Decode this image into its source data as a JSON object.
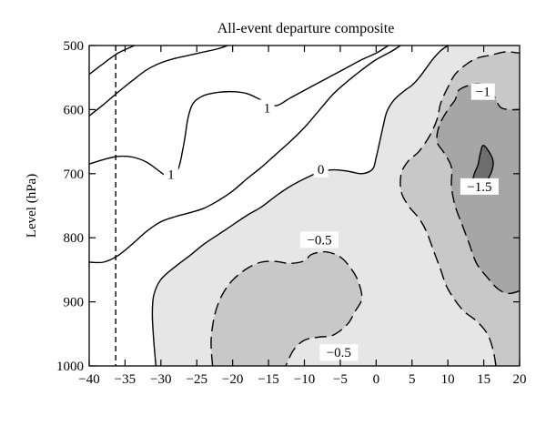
{
  "chart_data": {
    "type": "contour",
    "title": "All-event departure composite",
    "xlabel": "",
    "ylabel": "Level (hPa)",
    "xlim": [
      -40,
      20
    ],
    "ylim": [
      1000,
      500
    ],
    "y_axis_inverted": true,
    "x_ticks": [
      -40,
      -35,
      -30,
      -25,
      -20,
      -15,
      -10,
      -5,
      0,
      5,
      10,
      15,
      20
    ],
    "x_tick_labels": [
      "−40",
      "−35",
      "−30",
      "−25",
      "−20",
      "−15",
      "−10",
      "−5",
      "0",
      "5",
      "10",
      "15",
      "20"
    ],
    "y_ticks": [
      500,
      600,
      700,
      800,
      900,
      1000
    ],
    "y_tick_labels": [
      "500",
      "600",
      "700",
      "800",
      "900",
      "1000"
    ],
    "grid": false,
    "legend": "none",
    "reference_lines": [
      {
        "orientation": "vertical",
        "x": -36.3,
        "style": "dashed"
      }
    ],
    "fill_colors": {
      "below_0": "#e6e6e6",
      "below_neg0_5": "#c8c8c8",
      "below_neg1": "#a6a6a6",
      "below_neg1_5": "#6e6e6e"
    },
    "contours": [
      {
        "level": 1.5,
        "style": "solid",
        "points": [
          [
            -40,
            545
          ],
          [
            -38,
            528
          ],
          [
            -36,
            512
          ],
          [
            -33.7,
            500
          ]
        ]
      },
      {
        "level": 1.0,
        "style": "solid",
        "points": [
          [
            -40,
            610
          ],
          [
            -38,
            592
          ],
          [
            -36,
            573
          ],
          [
            -34,
            555
          ],
          [
            -32,
            538
          ],
          [
            -30,
            527
          ],
          [
            -28,
            520
          ],
          [
            -26,
            515
          ],
          [
            -24,
            510
          ],
          [
            -22,
            505
          ],
          [
            -20.7,
            500
          ]
        ]
      },
      {
        "level": 1.0,
        "style": "solid",
        "labels": [
          "1"
        ],
        "points": [
          [
            -40,
            685
          ],
          [
            -38,
            678
          ],
          [
            -36,
            673
          ],
          [
            -34,
            674
          ],
          [
            -32,
            682
          ],
          [
            -30,
            698
          ],
          [
            -28.5,
            710
          ]
        ]
      },
      {
        "level": 1.0,
        "style": "solid",
        "labels": [
          "1"
        ],
        "points": [
          [
            -28.5,
            710
          ],
          [
            -27.5,
            690
          ],
          [
            -27,
            665
          ],
          [
            -26.6,
            640
          ],
          [
            -26.2,
            612
          ],
          [
            -25.5,
            590
          ],
          [
            -24,
            578
          ],
          [
            -22,
            573
          ],
          [
            -20,
            572
          ],
          [
            -18,
            575
          ],
          [
            -16,
            585
          ],
          [
            -14,
            594
          ],
          [
            -12,
            582
          ],
          [
            -10,
            570
          ],
          [
            -8,
            558
          ],
          [
            -6,
            546
          ],
          [
            -4,
            534
          ],
          [
            -2,
            522
          ],
          [
            0,
            512
          ],
          [
            1.7,
            500
          ]
        ]
      },
      {
        "level": 0.5,
        "style": "solid",
        "points": [
          [
            -40,
            838
          ],
          [
            -38,
            838
          ],
          [
            -36,
            828
          ],
          [
            -34,
            810
          ],
          [
            -32,
            790
          ],
          [
            -30,
            775
          ],
          [
            -28,
            767
          ],
          [
            -26,
            761
          ],
          [
            -24,
            754
          ],
          [
            -22,
            742
          ],
          [
            -20,
            727
          ],
          [
            -18,
            708
          ],
          [
            -16,
            690
          ],
          [
            -14,
            670
          ],
          [
            -12,
            650
          ],
          [
            -10,
            628
          ],
          [
            -8,
            602
          ],
          [
            -6,
            576
          ],
          [
            -4,
            556
          ],
          [
            -2,
            538
          ],
          [
            0,
            522
          ],
          [
            2,
            510
          ],
          [
            3.4,
            500
          ]
        ]
      },
      {
        "level": 0.0,
        "style": "solid",
        "labels": [
          "0"
        ],
        "points": [
          [
            -30.7,
            1000
          ],
          [
            -31,
            960
          ],
          [
            -31.2,
            920
          ],
          [
            -31,
            890
          ],
          [
            -30,
            865
          ],
          [
            -28,
            845
          ],
          [
            -26,
            828
          ],
          [
            -24,
            810
          ],
          [
            -22,
            795
          ],
          [
            -20,
            780
          ],
          [
            -18,
            765
          ],
          [
            -16,
            752
          ],
          [
            -14,
            735
          ],
          [
            -12,
            720
          ],
          [
            -10,
            708
          ],
          [
            -8,
            698
          ],
          [
            -6,
            694
          ],
          [
            -4,
            696
          ],
          [
            -2,
            700
          ],
          [
            -0.5,
            693
          ],
          [
            0,
            675
          ],
          [
            0.5,
            650
          ],
          [
            1,
            625
          ],
          [
            1.5,
            603
          ],
          [
            2.5,
            585
          ],
          [
            4,
            570
          ],
          [
            5,
            562
          ],
          [
            6,
            550
          ],
          [
            7,
            535
          ],
          [
            8,
            520
          ],
          [
            9,
            508
          ],
          [
            10,
            500
          ]
        ]
      },
      {
        "level": -0.5,
        "style": "dashed",
        "labels": [
          "−0.5",
          "−0.5"
        ],
        "points": [
          [
            -22.8,
            1000
          ],
          [
            -23,
            960
          ],
          [
            -22.5,
            920
          ],
          [
            -21.5,
            890
          ],
          [
            -20,
            866
          ],
          [
            -18,
            848
          ],
          [
            -16,
            838
          ],
          [
            -14,
            837
          ],
          [
            -12,
            840
          ],
          [
            -10,
            836
          ],
          [
            -9,
            826
          ],
          [
            -7,
            822
          ],
          [
            -5,
            830
          ],
          [
            -3.5,
            848
          ],
          [
            -2.5,
            868
          ],
          [
            -2,
            895
          ],
          [
            -3,
            916
          ],
          [
            -4,
            935
          ],
          [
            -6,
            952
          ],
          [
            -8,
            955
          ],
          [
            -10,
            960
          ],
          [
            -11.5,
            975
          ],
          [
            -12.6,
            1000
          ]
        ]
      },
      {
        "level": -0.5,
        "style": "dashed",
        "points": [
          [
            16.7,
            1000
          ],
          [
            16.3,
            975
          ],
          [
            15.5,
            950
          ],
          [
            14,
            930
          ],
          [
            12,
            912
          ],
          [
            10,
            880
          ],
          [
            9,
            850
          ],
          [
            8,
            820
          ],
          [
            7,
            790
          ],
          [
            6,
            770
          ],
          [
            4.5,
            750
          ],
          [
            3.5,
            728
          ],
          [
            3.5,
            700
          ],
          [
            4.5,
            680
          ],
          [
            6,
            665
          ],
          [
            7.5,
            640
          ],
          [
            8.5,
            615
          ],
          [
            9,
            590
          ],
          [
            10,
            565
          ],
          [
            11,
            545
          ],
          [
            12.5,
            530
          ],
          [
            14,
            520
          ],
          [
            16,
            515
          ],
          [
            18,
            510
          ],
          [
            20,
            512
          ]
        ]
      },
      {
        "level": -1.0,
        "style": "dashed",
        "labels": [
          "−1"
        ],
        "points": [
          [
            20,
            883
          ],
          [
            18.5,
            887
          ],
          [
            17,
            880
          ],
          [
            15.5,
            862
          ],
          [
            14,
            840
          ],
          [
            13,
            810
          ],
          [
            12,
            780
          ],
          [
            11,
            750
          ],
          [
            10.5,
            720
          ],
          [
            10.5,
            690
          ],
          [
            9.5,
            668
          ],
          [
            8.5,
            650
          ],
          [
            8.8,
            625
          ],
          [
            10,
            600
          ],
          [
            11,
            585
          ],
          [
            11.5,
            570
          ],
          [
            13,
            562
          ],
          [
            14.5,
            560
          ],
          [
            16,
            568
          ],
          [
            16.5,
            580
          ],
          [
            17.3,
            596
          ],
          [
            18.5,
            600
          ],
          [
            20,
            600
          ]
        ]
      },
      {
        "level": -1.5,
        "style": "solid",
        "labels": [
          "−1.5"
        ],
        "points": [
          [
            15,
            656
          ],
          [
            16.3,
            680
          ],
          [
            15.7,
            706
          ],
          [
            14.3,
            714
          ],
          [
            13.5,
            712
          ],
          [
            13.7,
            700
          ],
          [
            14.2,
            686
          ],
          [
            14.5,
            670
          ]
        ]
      }
    ],
    "contour_label_values": [
      "1",
      "1",
      "0",
      "−0.5",
      "−0.5",
      "−1",
      "−1.5"
    ]
  }
}
